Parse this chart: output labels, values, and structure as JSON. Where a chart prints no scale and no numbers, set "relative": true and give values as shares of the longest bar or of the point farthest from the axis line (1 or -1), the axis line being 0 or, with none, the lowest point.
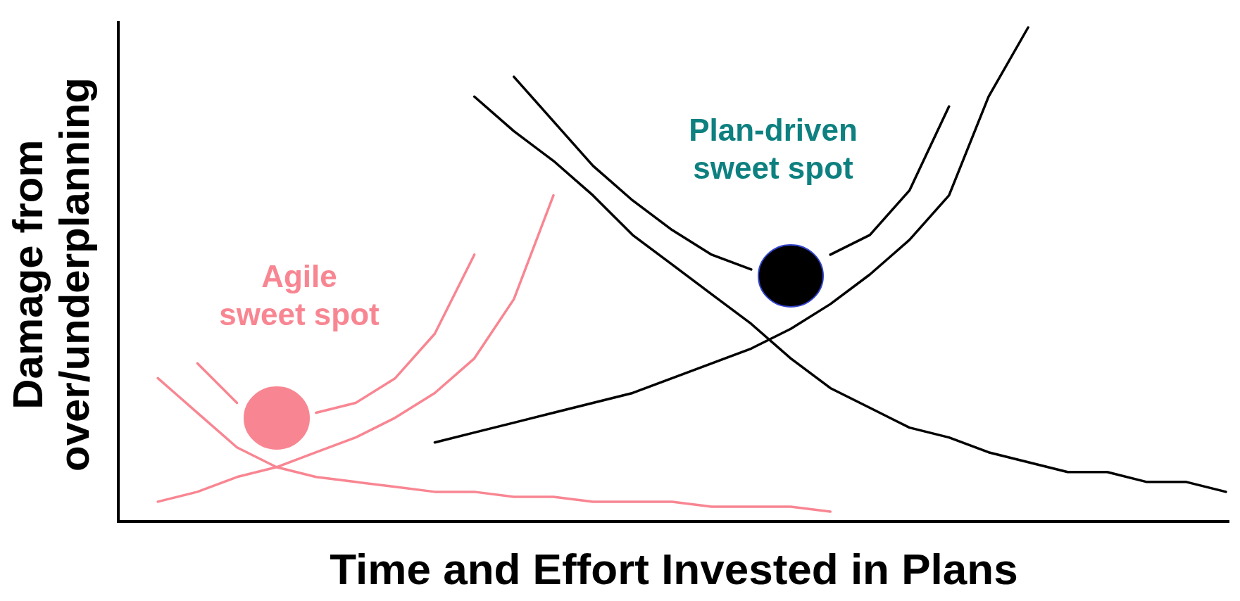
{
  "chart_data": {
    "type": "line",
    "relative": true,
    "xlabel": "Time and Effort Invested in Plans",
    "ylabel": "Damage from over/underplanning",
    "categories": [
      null,
      null,
      null,
      null,
      null,
      null,
      null,
      null,
      null,
      null,
      null,
      null,
      null,
      null,
      null,
      null,
      null,
      null,
      null,
      null,
      null,
      null,
      null,
      null,
      null,
      null,
      null,
      null,
      null
    ],
    "series": [
      {
        "color": "#f88692",
        "values": [
          null,
          0.29,
          0.22,
          0.15,
          0.11,
          0.09,
          0.08,
          0.07,
          0.06,
          0.06,
          0.05,
          0.05,
          0.04,
          0.04,
          0.04,
          0.03,
          0.03,
          0.03,
          0.02,
          null,
          null,
          null,
          null,
          null,
          null,
          null,
          null,
          null,
          null
        ]
      },
      {
        "color": "#f88692",
        "values": [
          null,
          0.04,
          0.06,
          0.09,
          0.11,
          0.14,
          0.17,
          0.21,
          0.26,
          0.33,
          0.45,
          0.66,
          null,
          null,
          null,
          null,
          null,
          null,
          null,
          null,
          null,
          null,
          null,
          null,
          null,
          null,
          null,
          null,
          null
        ]
      },
      {
        "color": "#f88692",
        "values": [
          null,
          null,
          0.32,
          0.24,
          null,
          0.22,
          0.24,
          0.29,
          0.38,
          0.54,
          null,
          null,
          null,
          null,
          null,
          null,
          null,
          null,
          null,
          null,
          null,
          null,
          null,
          null,
          null,
          null,
          null,
          null,
          null
        ]
      },
      {
        "color": "#000000",
        "values": [
          null,
          null,
          null,
          null,
          null,
          null,
          null,
          null,
          null,
          0.86,
          0.79,
          0.73,
          0.66,
          0.58,
          0.52,
          0.46,
          0.4,
          0.33,
          0.27,
          0.23,
          0.19,
          0.17,
          0.14,
          0.12,
          0.1,
          0.1,
          0.08,
          0.08,
          0.06
        ]
      },
      {
        "color": "#000000",
        "values": [
          null,
          null,
          null,
          null,
          null,
          null,
          null,
          null,
          0.16,
          0.18,
          0.2,
          0.22,
          0.24,
          0.26,
          0.29,
          0.32,
          0.35,
          0.39,
          0.44,
          0.5,
          0.57,
          0.66,
          0.86,
          1.0,
          null,
          null,
          null,
          null,
          null
        ]
      },
      {
        "color": "#000000",
        "values": [
          null,
          null,
          null,
          null,
          null,
          null,
          null,
          null,
          null,
          null,
          0.9,
          0.81,
          0.72,
          0.65,
          0.59,
          0.54,
          0.51,
          null,
          0.54,
          0.58,
          0.67,
          0.84,
          null,
          null,
          null,
          null,
          null,
          null,
          null
        ]
      }
    ],
    "annotations": [
      "Agile sweet spot",
      "Plan-driven sweet spot"
    ]
  }
}
